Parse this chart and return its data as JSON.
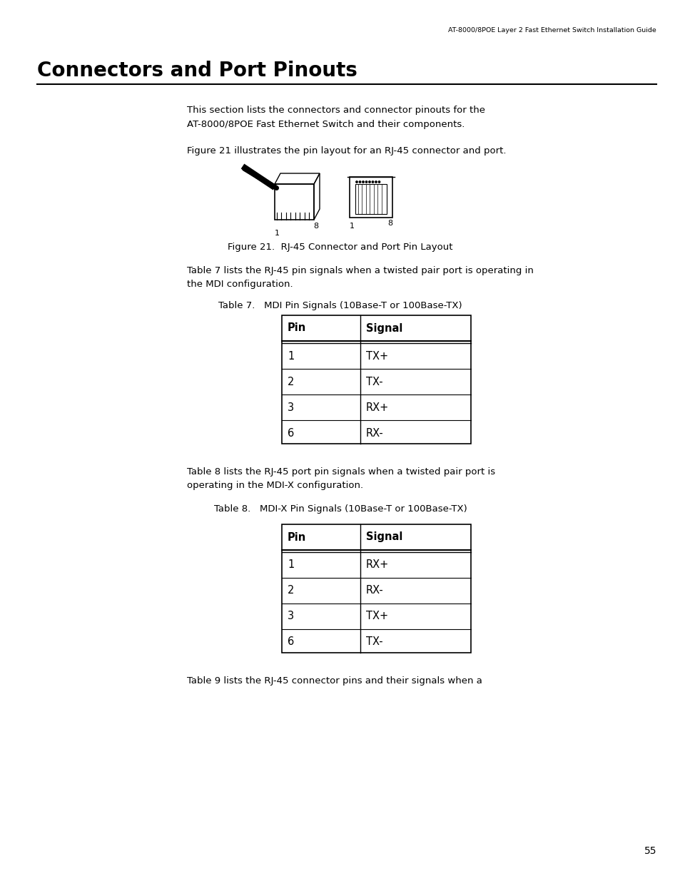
{
  "header_text": "AT-8000/8POE Layer 2 Fast Ethernet Switch Installation Guide",
  "page_number": "55",
  "title": "Connectors and Port Pinouts",
  "intro_para1_line1": "This section lists the connectors and connector pinouts for the",
  "intro_para1_line2": "AT-8000/8POE Fast Ethernet Switch and their components.",
  "figure_intro": "Figure 21 illustrates the pin layout for an RJ-45 connector and port.",
  "figure_caption": "Figure 21.  RJ-45 Connector and Port Pin Layout",
  "table7_title": "Table 7.   MDI Pin Signals (10Base-T or 100Base-TX)",
  "table7_headers": [
    "Pin",
    "Signal"
  ],
  "table7_rows": [
    [
      "1",
      "TX+"
    ],
    [
      "2",
      "TX-"
    ],
    [
      "3",
      "RX+"
    ],
    [
      "6",
      "RX-"
    ]
  ],
  "table7_intro_line1": "Table 7 lists the RJ-45 pin signals when a twisted pair port is operating in",
  "table7_intro_line2": "the MDI configuration.",
  "table8_title": "Table 8.   MDI-X Pin Signals (10Base-T or 100Base-TX)",
  "table8_headers": [
    "Pin",
    "Signal"
  ],
  "table8_rows": [
    [
      "1",
      "RX+"
    ],
    [
      "2",
      "RX-"
    ],
    [
      "3",
      "TX+"
    ],
    [
      "6",
      "TX-"
    ]
  ],
  "table8_intro_line1": "Table 8 lists the RJ-45 port pin signals when a twisted pair port is",
  "table8_intro_line2": "operating in the MDI-X configuration.",
  "last_para": "Table 9 lists the RJ-45 connector pins and their signals when a",
  "bg_color": "#ffffff",
  "text_color": "#000000"
}
